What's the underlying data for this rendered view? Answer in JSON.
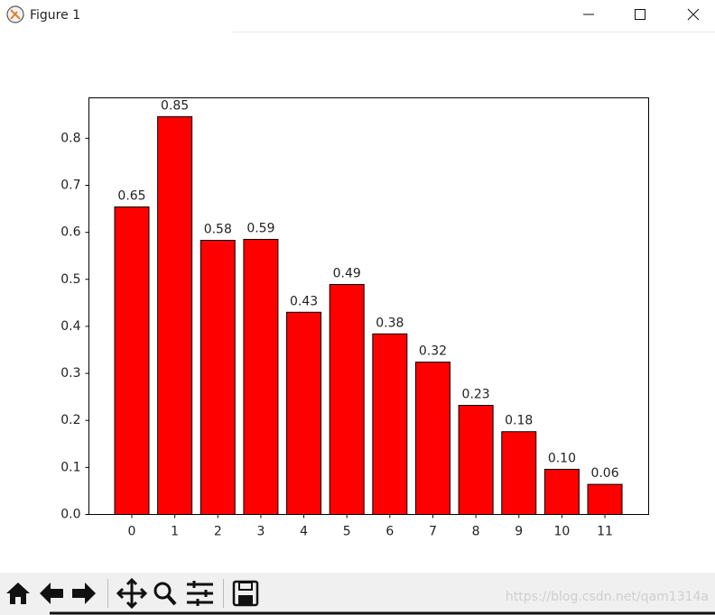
{
  "window": {
    "title": "Figure 1"
  },
  "watermark": "https://blog.csdn.net/qam1314a",
  "chart_data": {
    "type": "bar",
    "categories": [
      "0",
      "1",
      "2",
      "3",
      "4",
      "5",
      "6",
      "7",
      "8",
      "9",
      "10",
      "11"
    ],
    "values": [
      0.654,
      0.846,
      0.583,
      0.585,
      0.43,
      0.489,
      0.384,
      0.324,
      0.232,
      0.176,
      0.096,
      0.064
    ],
    "value_labels": [
      "0.65",
      "0.85",
      "0.58",
      "0.59",
      "0.43",
      "0.49",
      "0.38",
      "0.32",
      "0.23",
      "0.18",
      "0.10",
      "0.06"
    ],
    "color": "#ff0000",
    "edgecolor": "#000000",
    "ylim": [
      0,
      0.886
    ],
    "yticks": [
      {
        "value": 0,
        "label": "0.0"
      },
      0.1,
      0.2,
      0.3,
      0.4,
      0.5,
      0.6,
      0.7,
      0.8
    ],
    "grid": false
  }
}
